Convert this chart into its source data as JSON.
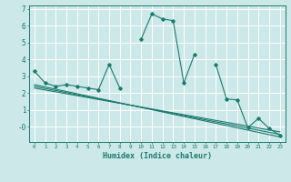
{
  "title": "",
  "xlabel": "Humidex (Indice chaleur)",
  "background_color": "#cce8e8",
  "grid_color": "#ffffff",
  "line_color": "#1a7a6e",
  "xlim": [
    -0.5,
    23.5
  ],
  "ylim": [
    -0.9,
    7.2
  ],
  "xticks": [
    0,
    1,
    2,
    3,
    4,
    5,
    6,
    7,
    8,
    9,
    10,
    11,
    12,
    13,
    14,
    15,
    16,
    17,
    18,
    19,
    20,
    21,
    22,
    23
  ],
  "yticks": [
    0,
    1,
    2,
    3,
    4,
    5,
    6,
    7
  ],
  "ytick_labels": [
    "-0",
    "1",
    "2",
    "3",
    "4",
    "5",
    "6",
    "7"
  ],
  "series_main": {
    "x": [
      0,
      1,
      2,
      3,
      4,
      5,
      6,
      7,
      8,
      10,
      11,
      12,
      13,
      14,
      15,
      17,
      18,
      19,
      20,
      21,
      22,
      23
    ],
    "y": [
      3.3,
      2.6,
      2.4,
      2.5,
      2.4,
      2.3,
      2.2,
      3.7,
      2.3,
      5.2,
      6.7,
      6.4,
      6.3,
      2.6,
      4.3,
      3.7,
      1.65,
      1.6,
      -0.05,
      0.5,
      -0.1,
      -0.5
    ]
  },
  "series_lines": [
    {
      "x": [
        0,
        23
      ],
      "y": [
        2.5,
        -0.6
      ]
    },
    {
      "x": [
        0,
        23
      ],
      "y": [
        2.3,
        -0.3
      ]
    },
    {
      "x": [
        0,
        23
      ],
      "y": [
        2.4,
        -0.45
      ]
    }
  ]
}
